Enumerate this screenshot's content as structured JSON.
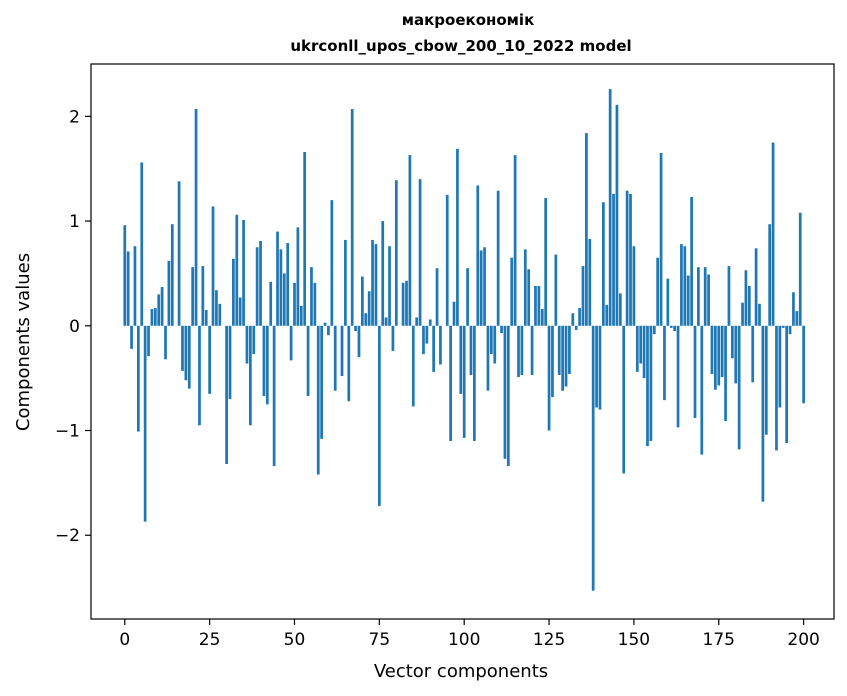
{
  "chart_data": {
    "type": "bar",
    "title_line1": "макроекономік",
    "title_line2": "ukrconll_upos_cbow_200_10_2022 model",
    "xlabel": "Vector components",
    "ylabel": "Components values",
    "xlim": [
      -9.95,
      208.95
    ],
    "ylim": [
      -2.8,
      2.5
    ],
    "xticks": [
      0,
      25,
      50,
      75,
      100,
      125,
      150,
      175,
      200
    ],
    "yticks": [
      -2,
      -1,
      0,
      1,
      2
    ],
    "ytick_labels": [
      "−2",
      "−1",
      "0",
      "1",
      "2"
    ],
    "grid": false,
    "color": "#1f77b4",
    "values": [
      0.96,
      0.71,
      -0.22,
      0.76,
      -1.01,
      1.56,
      -1.87,
      -0.29,
      0.16,
      0.17,
      0.3,
      0.37,
      -0.32,
      0.62,
      0.97,
      0.0,
      1.38,
      -0.43,
      -0.52,
      -0.6,
      0.56,
      2.07,
      -0.95,
      0.57,
      0.15,
      -0.65,
      1.14,
      0.34,
      0.21,
      0.0,
      -1.32,
      -0.7,
      0.64,
      1.06,
      0.27,
      1.01,
      -0.36,
      -0.95,
      -0.27,
      0.75,
      0.81,
      -0.67,
      -0.75,
      0.42,
      -1.34,
      0.9,
      0.73,
      0.5,
      0.79,
      -0.33,
      0.41,
      0.94,
      0.19,
      1.66,
      -0.67,
      0.56,
      0.41,
      -1.42,
      -1.08,
      0.03,
      -0.09,
      1.2,
      -0.62,
      0.0,
      -0.48,
      0.82,
      -0.72,
      2.07,
      -0.05,
      -0.3,
      0.47,
      0.12,
      0.33,
      0.82,
      0.78,
      -1.72,
      1.0,
      0.08,
      0.76,
      -0.24,
      1.39,
      0.0,
      0.41,
      0.43,
      1.63,
      -0.77,
      0.08,
      1.4,
      -0.27,
      -0.17,
      0.06,
      -0.44,
      0.55,
      -0.37,
      0.0,
      1.25,
      -1.1,
      0.23,
      1.69,
      -0.65,
      -1.07,
      0.55,
      -0.47,
      -1.1,
      1.34,
      0.72,
      0.75,
      -0.62,
      -0.27,
      -0.36,
      1.29,
      -0.07,
      -1.27,
      -1.34,
      0.65,
      1.63,
      -0.49,
      -0.47,
      0.73,
      0.54,
      -0.47,
      0.38,
      0.38,
      0.16,
      1.22,
      -1.0,
      -0.68,
      0.68,
      -0.47,
      -0.62,
      -0.58,
      -0.46,
      0.12,
      -0.04,
      0.17,
      0.57,
      1.84,
      0.83,
      -2.53,
      -0.78,
      -0.8,
      1.18,
      0.2,
      2.26,
      1.26,
      2.11,
      0.31,
      -1.41,
      1.29,
      1.26,
      0.76,
      -0.44,
      -0.36,
      -0.5,
      -1.15,
      -1.1,
      -0.08,
      0.65,
      1.65,
      -0.71,
      0.45,
      -0.02,
      -0.05,
      -0.97,
      0.78,
      0.76,
      0.48,
      1.23,
      -0.88,
      0.56,
      -1.23,
      0.56,
      0.49,
      -0.46,
      -0.61,
      -0.57,
      -0.49,
      -0.91,
      0.57,
      -0.31,
      -0.55,
      -1.18,
      0.22,
      0.53,
      0.38,
      -0.54,
      0.74,
      0.21,
      -1.68,
      -1.04,
      0.97,
      1.75,
      -1.19,
      -0.78,
      -0.02,
      -1.12,
      -0.08,
      0.32,
      0.14,
      1.08,
      -0.74
    ]
  }
}
